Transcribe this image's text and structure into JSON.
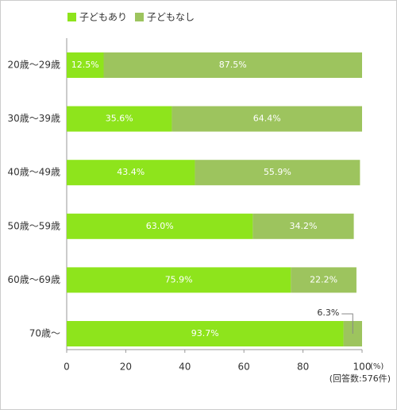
{
  "chart_data": {
    "type": "stacked-bar-horizontal",
    "categories": [
      "20歳～29歳",
      "30歳～39歳",
      "40歳～49歳",
      "50歳～59歳",
      "60歳～69歳",
      "70歳～"
    ],
    "series": [
      {
        "name": "子どもあり",
        "color": "#8ee41c",
        "values": [
          12.5,
          35.6,
          43.4,
          63.0,
          75.9,
          93.7
        ],
        "value_labels": [
          "12.5%",
          "35.6%",
          "43.4%",
          "63.0%",
          "75.9%",
          "93.7%"
        ]
      },
      {
        "name": "子どもなし",
        "color": "#9dc45e",
        "values": [
          87.5,
          64.4,
          55.9,
          34.2,
          22.2,
          6.3
        ],
        "value_labels": [
          "87.5%",
          "64.4%",
          "55.9%",
          "34.2%",
          "22.2%",
          "6.3%"
        ]
      }
    ],
    "xlim": [
      0,
      100
    ],
    "xticks": [
      0,
      20,
      40,
      60,
      80,
      100
    ],
    "x_unit": "(%)",
    "note": "(回答数:576件)"
  }
}
